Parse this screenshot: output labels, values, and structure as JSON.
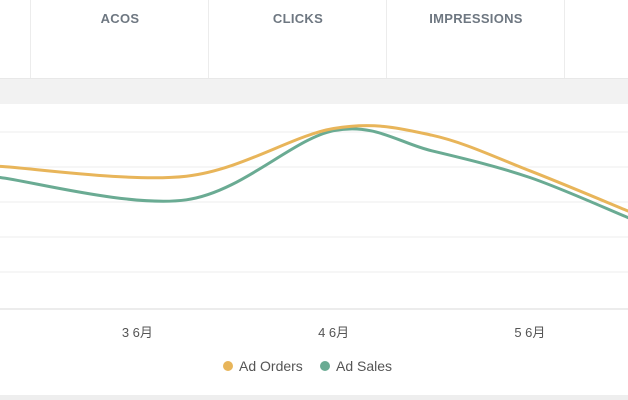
{
  "metrics": [
    {
      "label": ""
    },
    {
      "label": "ACOS"
    },
    {
      "label": "CLICKS"
    },
    {
      "label": "IMPRESSIONS"
    },
    {
      "label": ""
    }
  ],
  "chart_data": {
    "type": "line",
    "x": [
      "3 6月",
      "4 6月",
      "5 6月"
    ],
    "x_positions": [
      1,
      2,
      3
    ],
    "series": [
      {
        "name": "Ad Orders",
        "color": "#e8b55a",
        "points": [
          [
            0.3,
            3.2
          ],
          [
            1.25,
            2.98
          ],
          [
            2.0,
            4.05
          ],
          [
            2.5,
            3.9
          ],
          [
            3.0,
            3.1
          ],
          [
            3.5,
            2.2
          ]
        ]
      },
      {
        "name": "Ad Sales",
        "color": "#6aab93",
        "points": [
          [
            0.3,
            2.95
          ],
          [
            1.25,
            2.45
          ],
          [
            2.0,
            4.0
          ],
          [
            2.5,
            3.55
          ],
          [
            3.0,
            2.95
          ],
          [
            3.5,
            2.05
          ]
        ]
      }
    ],
    "xlim": [
      0.3,
      3.5
    ],
    "ylim": [
      0,
      4.6
    ],
    "grid": true,
    "legend_position": "bottom-center"
  }
}
